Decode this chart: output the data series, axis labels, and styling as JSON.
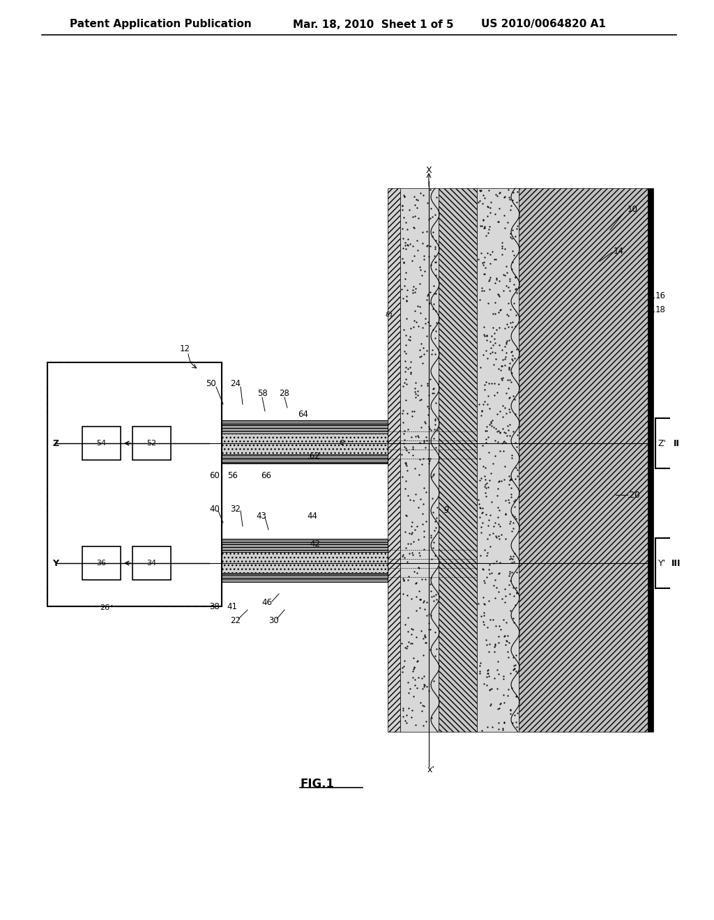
{
  "bg_color": "#ffffff",
  "header_left": "Patent Application Publication",
  "header_mid": "Mar. 18, 2010  Sheet 1 of 5",
  "header_right": "US 2010/0064820 A1",
  "fig_label": "FIG.1",
  "title_fontsize": 11,
  "body_fontsize": 9,
  "label_fontsize": 8.5
}
